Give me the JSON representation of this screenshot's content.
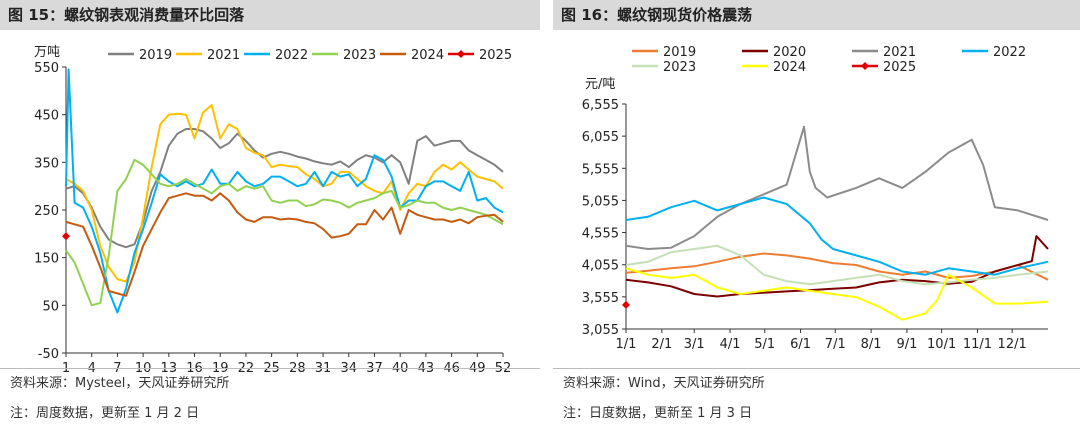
{
  "left": {
    "title": "图 15：螺纹钢表观消费量环比回落",
    "source": "资料来源：Mysteel，天风证券研究所",
    "note": "注：周度数据，更新至 1 月 2 日",
    "chart_data": {
      "type": "line",
      "ylabel": "万吨",
      "ylim": [
        -50,
        550
      ],
      "yticks": [
        -50,
        50,
        150,
        250,
        350,
        450,
        550
      ],
      "xlim": [
        1,
        52
      ],
      "xticks": [
        1,
        4,
        7,
        10,
        13,
        16,
        19,
        22,
        25,
        28,
        31,
        34,
        37,
        40,
        43,
        46,
        49,
        52
      ],
      "legend_position": "top",
      "series": [
        {
          "name": "2019",
          "color": "#808080",
          "x": [
            1,
            2,
            3,
            4,
            5,
            6,
            7,
            8,
            9,
            10,
            11,
            12,
            13,
            14,
            15,
            16,
            17,
            18,
            19,
            20,
            21,
            22,
            23,
            24,
            25,
            26,
            27,
            28,
            29,
            30,
            31,
            32,
            33,
            34,
            35,
            36,
            37,
            38,
            39,
            40,
            41,
            42,
            43,
            44,
            45,
            46,
            47,
            48,
            49,
            50,
            51,
            52
          ],
          "values": [
            295,
            300,
            285,
            255,
            215,
            188,
            178,
            172,
            178,
            225,
            290,
            330,
            385,
            410,
            420,
            420,
            415,
            400,
            380,
            390,
            410,
            395,
            375,
            360,
            368,
            372,
            368,
            362,
            358,
            352,
            348,
            345,
            352,
            340,
            355,
            365,
            360,
            350,
            365,
            350,
            305,
            395,
            405,
            385,
            390,
            395,
            395,
            375,
            365,
            355,
            345,
            330
          ]
        },
        {
          "name": "2021",
          "color": "#FFC000",
          "x": [
            1,
            2,
            3,
            4,
            5,
            6,
            7,
            8,
            9,
            10,
            11,
            12,
            13,
            14,
            15,
            16,
            17,
            18,
            19,
            20,
            21,
            22,
            23,
            24,
            25,
            26,
            27,
            28,
            29,
            30,
            31,
            32,
            33,
            34,
            35,
            36,
            37,
            38,
            39,
            40,
            41,
            42,
            43,
            44,
            45,
            46,
            47,
            48,
            49,
            50,
            51,
            52
          ],
          "values": [
            315,
            305,
            290,
            250,
            175,
            130,
            105,
            100,
            140,
            235,
            340,
            430,
            450,
            452,
            450,
            400,
            455,
            470,
            400,
            430,
            420,
            380,
            370,
            365,
            340,
            345,
            342,
            340,
            325,
            315,
            300,
            305,
            330,
            330,
            315,
            300,
            290,
            285,
            310,
            250,
            285,
            305,
            300,
            330,
            345,
            335,
            350,
            335,
            320,
            315,
            310,
            295
          ]
        },
        {
          "name": "2022",
          "color": "#00B0F0",
          "x": [
            1,
            1.3,
            2,
            3,
            4,
            5,
            6,
            7,
            8,
            9,
            10,
            11,
            12,
            13,
            14,
            15,
            16,
            17,
            18,
            19,
            20,
            21,
            22,
            23,
            24,
            25,
            26,
            27,
            28,
            29,
            30,
            31,
            32,
            33,
            34,
            35,
            36,
            37,
            38,
            39,
            40,
            41,
            42,
            43,
            44,
            45,
            46,
            47,
            48,
            49,
            50,
            51,
            52
          ],
          "values": [
            300,
            545,
            265,
            255,
            215,
            160,
            80,
            35,
            85,
            160,
            210,
            265,
            325,
            310,
            300,
            310,
            300,
            305,
            335,
            305,
            305,
            330,
            310,
            300,
            305,
            320,
            320,
            310,
            300,
            305,
            330,
            300,
            330,
            320,
            325,
            300,
            315,
            365,
            355,
            320,
            255,
            270,
            270,
            300,
            310,
            310,
            300,
            290,
            330,
            270,
            275,
            255,
            245
          ]
        },
        {
          "name": "2023",
          "color": "#92D050",
          "x": [
            1,
            2,
            3,
            4,
            5,
            6,
            7,
            8,
            9,
            10,
            11,
            12,
            13,
            14,
            15,
            16,
            17,
            18,
            19,
            20,
            21,
            22,
            23,
            24,
            25,
            26,
            27,
            28,
            29,
            30,
            31,
            32,
            33,
            34,
            35,
            36,
            37,
            38,
            39,
            40,
            41,
            42,
            43,
            44,
            45,
            46,
            47,
            48,
            49,
            50,
            51,
            52
          ],
          "values": [
            165,
            140,
            95,
            50,
            55,
            155,
            290,
            315,
            355,
            345,
            325,
            305,
            300,
            305,
            315,
            305,
            295,
            285,
            300,
            305,
            290,
            300,
            295,
            300,
            270,
            265,
            270,
            270,
            258,
            262,
            272,
            270,
            265,
            255,
            265,
            270,
            275,
            285,
            290,
            255,
            260,
            270,
            265,
            265,
            255,
            250,
            255,
            250,
            245,
            240,
            230,
            220
          ]
        },
        {
          "name": "2024",
          "color": "#C55A11",
          "x": [
            1,
            2,
            3,
            4,
            5,
            6,
            7,
            8,
            9,
            10,
            11,
            12,
            13,
            14,
            15,
            16,
            17,
            18,
            19,
            20,
            21,
            22,
            23,
            24,
            25,
            26,
            27,
            28,
            29,
            30,
            31,
            32,
            33,
            34,
            35,
            36,
            37,
            38,
            39,
            40,
            41,
            42,
            43,
            44,
            45,
            46,
            47,
            48,
            49,
            50,
            51,
            52
          ],
          "values": [
            225,
            220,
            215,
            175,
            130,
            80,
            75,
            70,
            120,
            175,
            210,
            245,
            275,
            280,
            285,
            280,
            280,
            270,
            285,
            270,
            245,
            230,
            225,
            235,
            235,
            230,
            232,
            230,
            225,
            222,
            210,
            192,
            195,
            200,
            220,
            220,
            250,
            230,
            255,
            200,
            250,
            240,
            235,
            230,
            230,
            225,
            230,
            222,
            235,
            238,
            240,
            225
          ]
        },
        {
          "name": "2025",
          "color": "#E00000",
          "marker": "diamond",
          "x": [
            1
          ],
          "values": [
            195
          ]
        }
      ]
    }
  },
  "right": {
    "title": "图 16：螺纹钢现货价格震荡",
    "source": "资料来源：Wind，天风证券研究所",
    "note": "注：日度数据，更新至 1 月 3 日",
    "chart_data": {
      "type": "line",
      "ylabel": "元/吨",
      "ylim": [
        3055,
        6555
      ],
      "yticks": [
        3055,
        3555,
        4055,
        4555,
        5055,
        5555,
        6055,
        6555
      ],
      "yticklabels": [
        "3,055",
        "3,555",
        "4,055",
        "4,555",
        "5,055",
        "5,555",
        "6,055",
        "6,555"
      ],
      "xlim": [
        1,
        366
      ],
      "xticks": [
        1,
        32,
        60,
        91,
        121,
        152,
        182,
        213,
        244,
        274,
        305,
        335
      ],
      "xticklabels": [
        "1/1",
        "2/1",
        "3/1",
        "4/1",
        "5/1",
        "6/1",
        "7/1",
        "8/1",
        "9/1",
        "10/1",
        "11/1",
        "12/1"
      ],
      "legend_position": "top",
      "series": [
        {
          "name": "2019",
          "color": "#ED7D31",
          "x": [
            1,
            20,
            40,
            60,
            80,
            100,
            120,
            140,
            160,
            180,
            200,
            220,
            240,
            260,
            280,
            300,
            320,
            340,
            366
          ],
          "values": [
            3930,
            3960,
            4000,
            4030,
            4100,
            4180,
            4230,
            4200,
            4150,
            4080,
            4050,
            3950,
            3900,
            3950,
            3850,
            3880,
            3950,
            4050,
            3820
          ]
        },
        {
          "name": "2020",
          "color": "#7B0000",
          "x": [
            1,
            20,
            40,
            60,
            80,
            100,
            120,
            140,
            160,
            180,
            200,
            220,
            240,
            260,
            280,
            300,
            320,
            340,
            352,
            356,
            366
          ],
          "values": [
            3820,
            3780,
            3720,
            3600,
            3560,
            3600,
            3620,
            3640,
            3660,
            3680,
            3700,
            3780,
            3820,
            3800,
            3760,
            3790,
            3950,
            4050,
            4110,
            4500,
            4300
          ]
        },
        {
          "name": "2021",
          "color": "#8C8C8C",
          "x": [
            1,
            20,
            40,
            60,
            80,
            100,
            120,
            140,
            155,
            160,
            165,
            175,
            200,
            220,
            240,
            260,
            280,
            300,
            310,
            320,
            340,
            366
          ],
          "values": [
            4350,
            4300,
            4320,
            4500,
            4800,
            5000,
            5150,
            5300,
            6200,
            5500,
            5250,
            5100,
            5250,
            5400,
            5250,
            5500,
            5800,
            6000,
            5600,
            4950,
            4900,
            4750
          ]
        },
        {
          "name": "2022",
          "color": "#00B0F0",
          "x": [
            1,
            20,
            40,
            60,
            80,
            100,
            120,
            140,
            160,
            170,
            180,
            200,
            220,
            240,
            260,
            280,
            300,
            320,
            340,
            366
          ],
          "values": [
            4750,
            4800,
            4950,
            5050,
            4900,
            5000,
            5100,
            5000,
            4700,
            4450,
            4300,
            4200,
            4100,
            3950,
            3900,
            4000,
            3950,
            3900,
            4000,
            4100
          ]
        },
        {
          "name": "2023",
          "color": "#C5E0B4",
          "x": [
            1,
            20,
            40,
            60,
            80,
            100,
            120,
            140,
            160,
            180,
            200,
            220,
            240,
            260,
            280,
            300,
            320,
            340,
            366
          ],
          "values": [
            4050,
            4100,
            4250,
            4300,
            4350,
            4200,
            3900,
            3800,
            3750,
            3800,
            3850,
            3900,
            3800,
            3750,
            3780,
            3820,
            3850,
            3900,
            3950
          ]
        },
        {
          "name": "2024",
          "color": "#FFFF00",
          "x": [
            1,
            20,
            40,
            60,
            80,
            100,
            120,
            140,
            160,
            180,
            200,
            220,
            240,
            260,
            270,
            280,
            300,
            320,
            340,
            366
          ],
          "values": [
            4000,
            3900,
            3850,
            3900,
            3700,
            3600,
            3650,
            3700,
            3650,
            3600,
            3550,
            3400,
            3200,
            3300,
            3500,
            3900,
            3700,
            3450,
            3450,
            3480
          ]
        },
        {
          "name": "2025",
          "color": "#E00000",
          "marker": "diamond",
          "x": [
            1
          ],
          "values": [
            3430
          ]
        }
      ]
    }
  }
}
